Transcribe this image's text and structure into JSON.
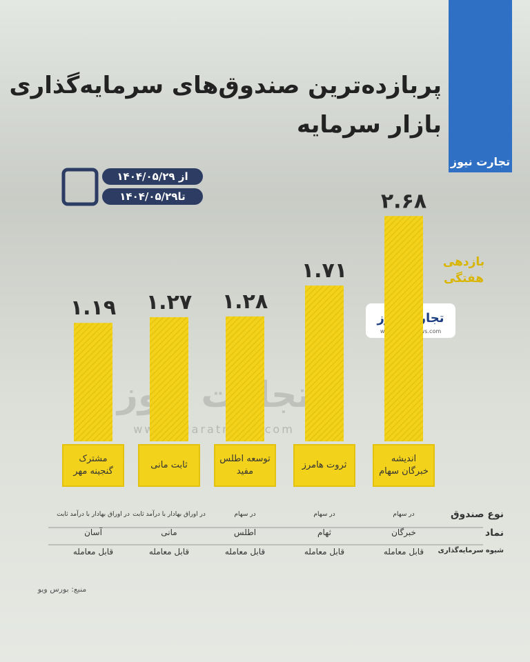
{
  "chart_data": {
    "type": "bar",
    "title": "پربازده‌ترین صندوق‌های سرمایه‌گذاری بازار سرمایه",
    "y_label": "بازدهی هفتگی",
    "categories": [
      "اندیشه خبرگان سهام",
      "ثروت هامرز",
      "توسعه اطلس مفید",
      "ثابت مانی",
      "مشترک گنجینه مهر"
    ],
    "values": [
      2.68,
      1.71,
      1.28,
      1.27,
      1.19
    ],
    "value_labels": [
      "۲.۶۸",
      "۱.۷۱",
      "۱.۲۸",
      "۱.۲۷",
      "۱.۱۹"
    ],
    "color": "#f3d21b"
  },
  "date_range": {
    "from": "از ۱۴۰۴/۰۵/۲۹",
    "to": "تا۱۴۰۴/۰۵/۲۹"
  },
  "brand": {
    "name": "تجارت نیوز",
    "url": "www.tejaratnews.com"
  },
  "table": {
    "row_headers": [
      "نوع صندوق",
      "نماد",
      "شیوه سرمایه‌گذاری"
    ],
    "rows": [
      [
        "در سهام",
        "در سهام",
        "در سهام",
        "در اوراق بهادار با درآمد ثابت",
        "در اوراق بهادار با درآمد ثابت"
      ],
      [
        "خبرگان",
        "ثهام",
        "اطلس",
        "مانی",
        "آسان"
      ],
      [
        "قابل معامله",
        "قابل معامله",
        "قابل معامله",
        "قابل معامله",
        "قابل معامله"
      ]
    ]
  },
  "source": "منبع: بورس ویو"
}
